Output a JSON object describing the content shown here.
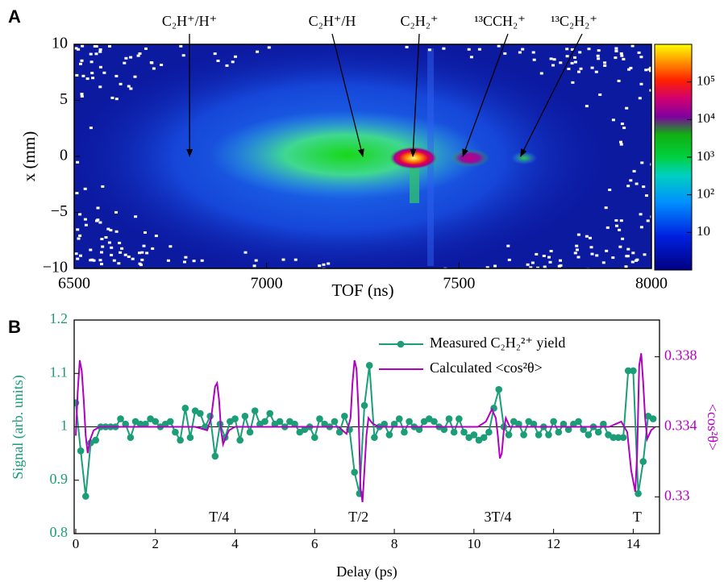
{
  "chart_data": [
    {
      "type": "heatmap",
      "panel_label": "A",
      "x_label": "TOF (ns)",
      "y_label": "x (mm)",
      "xlim": [
        6500,
        8000
      ],
      "ylim": [
        -10,
        10
      ],
      "xticks": [
        6500,
        7000,
        7500,
        8000
      ],
      "yticks": [
        10,
        5,
        0,
        {
          "value": -5,
          "label": "−5"
        },
        {
          "value": -10,
          "label": "−10"
        }
      ],
      "colorbar": {
        "log": true,
        "clim": [
          1,
          1000000
        ],
        "ticks": [
          10,
          {
            "value": 100,
            "label": "10²"
          },
          {
            "value": 1000,
            "label": "10³"
          },
          {
            "value": 10000,
            "label": "10⁴"
          },
          {
            "value": 100000,
            "label": "10⁵"
          }
        ]
      },
      "annotations": [
        {
          "text": "C₂H⁺/H⁺",
          "x": 6800,
          "y": 0
        },
        {
          "text": "C₂H⁺/H",
          "x": 7250,
          "y": 0
        },
        {
          "text": "C₂H₂⁺",
          "x": 7380,
          "y": 0
        },
        {
          "text": "¹³CCH₂⁺",
          "x": 7510,
          "y": 0
        },
        {
          "text": "¹³C₂H₂⁺",
          "x": 7660,
          "y": 0
        }
      ]
    },
    {
      "type": "line",
      "panel_label": "B",
      "x_label": "Delay (ps)",
      "y_label": "Signal (arb. units)",
      "y2_label": "<cos²θ>",
      "xlim": [
        -0.04,
        14.66
      ],
      "ylim": [
        0.8,
        1.2
      ],
      "y2lim": [
        0.3279,
        0.3401
      ],
      "xticks": [
        0,
        2,
        4,
        6,
        8,
        10,
        12,
        14
      ],
      "yticks": [
        0.8,
        0.9,
        1,
        1.1,
        1.2
      ],
      "y2ticks": [
        0.33,
        0.334,
        0.338
      ],
      "hline": 1,
      "y_color": "#1b9e77",
      "y2_color": "#b000c0",
      "annotations": [
        {
          "text": "T/4",
          "x": 3.6
        },
        {
          "text": "T/2",
          "x": 7.1
        },
        {
          "text": "3T/4",
          "x": 10.6
        },
        {
          "text": "T",
          "x": 14.1
        }
      ],
      "series": [
        {
          "name": "Measured C₂H₂²⁺ yield",
          "color": "#1b9e77",
          "axis": "y",
          "x": [
            0,
            0.125,
            0.25,
            0.375,
            0.5,
            0.625,
            0.75,
            0.875,
            1,
            1.125,
            1.25,
            1.375,
            1.5,
            1.625,
            1.75,
            1.875,
            2,
            2.125,
            2.25,
            2.375,
            2.5,
            2.625,
            2.75,
            2.875,
            3,
            3.125,
            3.25,
            3.375,
            3.5,
            3.625,
            3.75,
            3.875,
            4,
            4.125,
            4.25,
            4.375,
            4.5,
            4.625,
            4.75,
            4.875,
            5,
            5.125,
            5.25,
            5.375,
            5.5,
            5.625,
            5.75,
            5.875,
            6,
            6.125,
            6.25,
            6.375,
            6.5,
            6.625,
            6.75,
            6.875,
            7,
            7.125,
            7.25,
            7.375,
            7.5,
            7.625,
            7.75,
            7.875,
            8,
            8.125,
            8.25,
            8.375,
            8.5,
            8.625,
            8.75,
            8.875,
            9,
            9.125,
            9.25,
            9.375,
            9.5,
            9.625,
            9.75,
            9.875,
            10,
            10.125,
            10.25,
            10.375,
            10.5,
            10.625,
            10.75,
            10.875,
            11,
            11.125,
            11.25,
            11.375,
            11.5,
            11.625,
            11.75,
            11.875,
            12,
            12.125,
            12.25,
            12.375,
            12.5,
            12.625,
            12.75,
            12.875,
            13,
            13.125,
            13.25,
            13.375,
            13.5,
            13.625,
            13.75,
            13.875,
            14,
            14.125,
            14.25,
            14.375,
            14.5
          ],
          "values": [
            1.045,
            0.955,
            0.87,
            0.97,
            0.975,
            1.0,
            1.0,
            1.0,
            1.0,
            1.015,
            1.005,
            0.98,
            1.01,
            1.005,
            1.005,
            1.015,
            1.01,
            1.0,
            1.005,
            1.01,
            0.99,
            0.975,
            1.035,
            0.98,
            1.03,
            1.025,
            1.0,
            1.02,
            0.945,
            1.005,
            0.98,
            1.01,
            1.015,
            0.975,
            1.02,
            0.99,
            1.03,
            1.005,
            1.01,
            1.025,
            1.005,
            1.01,
            1.0,
            1.01,
            1.005,
            0.99,
            0.995,
            1.0,
            0.98,
            1.015,
            1.005,
            1.0,
            1.01,
            0.99,
            1.02,
            0.995,
            0.915,
            0.875,
            1.04,
            1.115,
            0.98,
            1.0,
            1.005,
            0.985,
            1.005,
            1.015,
            0.99,
            1.01,
            1.0,
            0.995,
            1.01,
            1.015,
            1.01,
            1.0,
            0.995,
            1.015,
            0.99,
            1.015,
            0.99,
            0.98,
            0.985,
            0.975,
            0.98,
            0.99,
            1.035,
            1.07,
            1.0,
            0.985,
            1.01,
            1.005,
            0.985,
            1.01,
            1.005,
            0.985,
            1.0,
            0.985,
            1.01,
            0.99,
            1.005,
            0.995,
            1.005,
            1.01,
            0.995,
            0.985,
            1.0,
            0.99,
            1.005,
            0.985,
            0.98,
            0.98,
            0.98,
            1.105,
            1.105,
            0.875,
            0.935,
            1.02,
            1.015
          ]
        },
        {
          "name": "Calculated <cos²θ>",
          "color": "#b000c0",
          "axis": "y2",
          "x": [
            0,
            0.05,
            0.1,
            0.15,
            0.2,
            0.25,
            0.3,
            0.35,
            0.45,
            0.6,
            3.0,
            3.3,
            3.4,
            3.5,
            3.55,
            3.6,
            3.65,
            3.7,
            3.75,
            3.85,
            4.0,
            6.6,
            6.8,
            6.9,
            6.95,
            7.0,
            7.05,
            7.1,
            7.15,
            7.2,
            7.25,
            7.3,
            7.35,
            7.45,
            7.6,
            10.1,
            10.3,
            10.45,
            10.55,
            10.6,
            10.65,
            10.7,
            10.75,
            10.8,
            10.9,
            13.4,
            13.7,
            13.85,
            13.95,
            14.05,
            14.1,
            14.15,
            14.2,
            14.25,
            14.3,
            14.35,
            14.45,
            14.55
          ],
          "values": [
            0.3335,
            0.336,
            0.3378,
            0.3372,
            0.3355,
            0.3335,
            0.3325,
            0.3332,
            0.3338,
            0.334,
            0.334,
            0.3338,
            0.3345,
            0.3363,
            0.3365,
            0.3355,
            0.3338,
            0.333,
            0.3333,
            0.3338,
            0.334,
            0.334,
            0.3336,
            0.3345,
            0.3365,
            0.3378,
            0.3373,
            0.335,
            0.3305,
            0.3297,
            0.3315,
            0.3335,
            0.3345,
            0.3342,
            0.334,
            0.334,
            0.3343,
            0.335,
            0.3345,
            0.3335,
            0.3322,
            0.3325,
            0.3338,
            0.3345,
            0.334,
            0.334,
            0.3343,
            0.3337,
            0.3315,
            0.3303,
            0.3325,
            0.3375,
            0.3382,
            0.3365,
            0.3345,
            0.3333,
            0.3338,
            0.334
          ]
        }
      ]
    }
  ]
}
